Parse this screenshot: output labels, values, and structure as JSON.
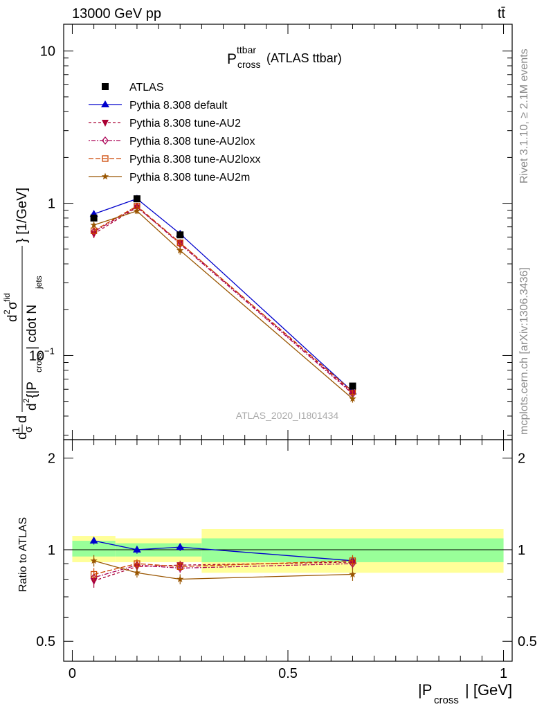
{
  "header": {
    "beam_label": "13000 GeV pp",
    "process_label": "tt̄"
  },
  "side_labels": {
    "rivet": "Rivet 3.1.10, ≥ 2.1M events",
    "mcplots": "mcplots.cern.ch [arXiv:1306.3436]"
  },
  "chart_data": [
    {
      "type": "line",
      "title_main": "P",
      "title_sup": "ttbar",
      "title_sub": "cross",
      "title_suffix": "(ATLAS ttbar)",
      "analysis_label": "ATLAS_2020_I1801434",
      "yscale": "log",
      "ylim": [
        0.028,
        15
      ],
      "xlim": [
        -0.02,
        1.02
      ],
      "ylabel": {
        "d1": "d",
        "one": "1",
        "sigma": "σ",
        "d2": "d",
        "d2sq": "2",
        "sigma_fid": "σ",
        "fid_sup": "fid",
        "denom_d": "d",
        "denom_2": "2",
        "denom_open": "{|P",
        "denom_sub": "cross",
        "denom_mid": "| cdot N",
        "denom_sub2": "jets",
        "close_unit": "} [1/GeV]"
      },
      "y_ticks": [
        {
          "value": 10,
          "label": "10"
        },
        {
          "value": 1,
          "label": "1"
        },
        {
          "value": 0.1,
          "label": "10",
          "sup": "−1"
        }
      ],
      "legend_position": "top-left",
      "x": [
        0.05,
        0.15,
        0.25,
        0.65
      ],
      "series": [
        {
          "name": "ATLAS",
          "values": [
            0.8,
            1.07,
            0.62,
            0.063
          ],
          "color": "#000000",
          "marker": "square",
          "dash": "none",
          "errors": [
            0.03,
            0.04,
            0.03,
            0.003
          ]
        },
        {
          "name": "Pythia 8.308 default",
          "values": [
            0.85,
            1.07,
            0.63,
            0.058
          ],
          "color": "#0000cc",
          "marker": "triangle-up",
          "dash": "none",
          "errors": [
            0.03,
            0.04,
            0.03,
            0.003
          ]
        },
        {
          "name": "Pythia 8.308 tune-AU2",
          "values": [
            0.63,
            0.94,
            0.55,
            0.057
          ],
          "color": "#aa0033",
          "marker": "triangle-down",
          "dash": "4,3",
          "errors": [
            0.04,
            0.04,
            0.03,
            0.003
          ]
        },
        {
          "name": "Pythia 8.308 tune-AU2lox",
          "values": [
            0.65,
            0.95,
            0.54,
            0.056
          ],
          "color": "#aa0055",
          "marker": "diamond-open",
          "dash": "2,2,6,2",
          "errors": [
            0.04,
            0.04,
            0.03,
            0.003
          ]
        },
        {
          "name": "Pythia 8.308 tune-AU2loxx",
          "values": [
            0.66,
            0.96,
            0.55,
            0.058
          ],
          "color": "#cc4400",
          "marker": "square-open",
          "dash": "7,3",
          "errors": [
            0.04,
            0.04,
            0.03,
            0.003
          ]
        },
        {
          "name": "Pythia 8.308 tune-AU2m",
          "values": [
            0.72,
            0.89,
            0.49,
            0.052
          ],
          "color": "#995500",
          "marker": "star",
          "dash": "none",
          "errors": [
            0.03,
            0.04,
            0.03,
            0.003
          ]
        }
      ]
    },
    {
      "type": "line",
      "ylabel": "Ratio to ATLAS",
      "xlabel_main": "|P",
      "xlabel_sub": "cross",
      "xlabel_end": "| [GeV]",
      "yscale": "log",
      "ylim": [
        0.43,
        2.3
      ],
      "xlim": [
        -0.02,
        1.02
      ],
      "y_ticks": [
        {
          "value": 2,
          "label": "2"
        },
        {
          "value": 1,
          "label": "1"
        },
        {
          "value": 0.5,
          "label": "0.5"
        }
      ],
      "x_ticks": [
        {
          "value": 0,
          "label": "0"
        },
        {
          "value": 0.5,
          "label": "0.5"
        },
        {
          "value": 1,
          "label": "1"
        }
      ],
      "bands": [
        {
          "x0": 0.0,
          "x1": 0.1,
          "yellow": [
            0.91,
            1.11
          ],
          "green": [
            0.95,
            1.07
          ]
        },
        {
          "x0": 0.1,
          "x1": 0.3,
          "yellow": [
            0.91,
            1.09
          ],
          "green": [
            0.95,
            1.05
          ]
        },
        {
          "x0": 0.3,
          "x1": 1.0,
          "yellow": [
            0.84,
            1.17
          ],
          "green": [
            0.91,
            1.09
          ]
        }
      ],
      "band_colors": {
        "yellow": "#ffff99",
        "green": "#99ff99"
      },
      "x": [
        0.05,
        0.15,
        0.25,
        0.65
      ],
      "series": [
        {
          "name": "Pythia 8.308 default",
          "values": [
            1.07,
            1.0,
            1.02,
            0.92
          ],
          "color": "#0000cc",
          "marker": "triangle-up",
          "dash": "none",
          "errors": [
            0.03,
            0.03,
            0.03,
            0.03
          ]
        },
        {
          "name": "Pythia 8.308 tune-AU2",
          "values": [
            0.79,
            0.88,
            0.89,
            0.91
          ],
          "color": "#aa0033",
          "marker": "triangle-down",
          "dash": "4,3",
          "errors": [
            0.04,
            0.03,
            0.03,
            0.04
          ]
        },
        {
          "name": "Pythia 8.308 tune-AU2lox",
          "values": [
            0.81,
            0.89,
            0.87,
            0.9
          ],
          "color": "#aa0055",
          "marker": "diamond-open",
          "dash": "2,2,6,2",
          "errors": [
            0.04,
            0.03,
            0.03,
            0.04
          ]
        },
        {
          "name": "Pythia 8.308 tune-AU2loxx",
          "values": [
            0.83,
            0.9,
            0.88,
            0.92
          ],
          "color": "#cc4400",
          "marker": "square-open",
          "dash": "7,3",
          "errors": [
            0.04,
            0.03,
            0.03,
            0.04
          ]
        },
        {
          "name": "Pythia 8.308 tune-AU2m",
          "values": [
            0.92,
            0.84,
            0.8,
            0.83
          ],
          "color": "#995500",
          "marker": "star",
          "dash": "none",
          "errors": [
            0.04,
            0.03,
            0.03,
            0.04
          ]
        }
      ]
    }
  ]
}
